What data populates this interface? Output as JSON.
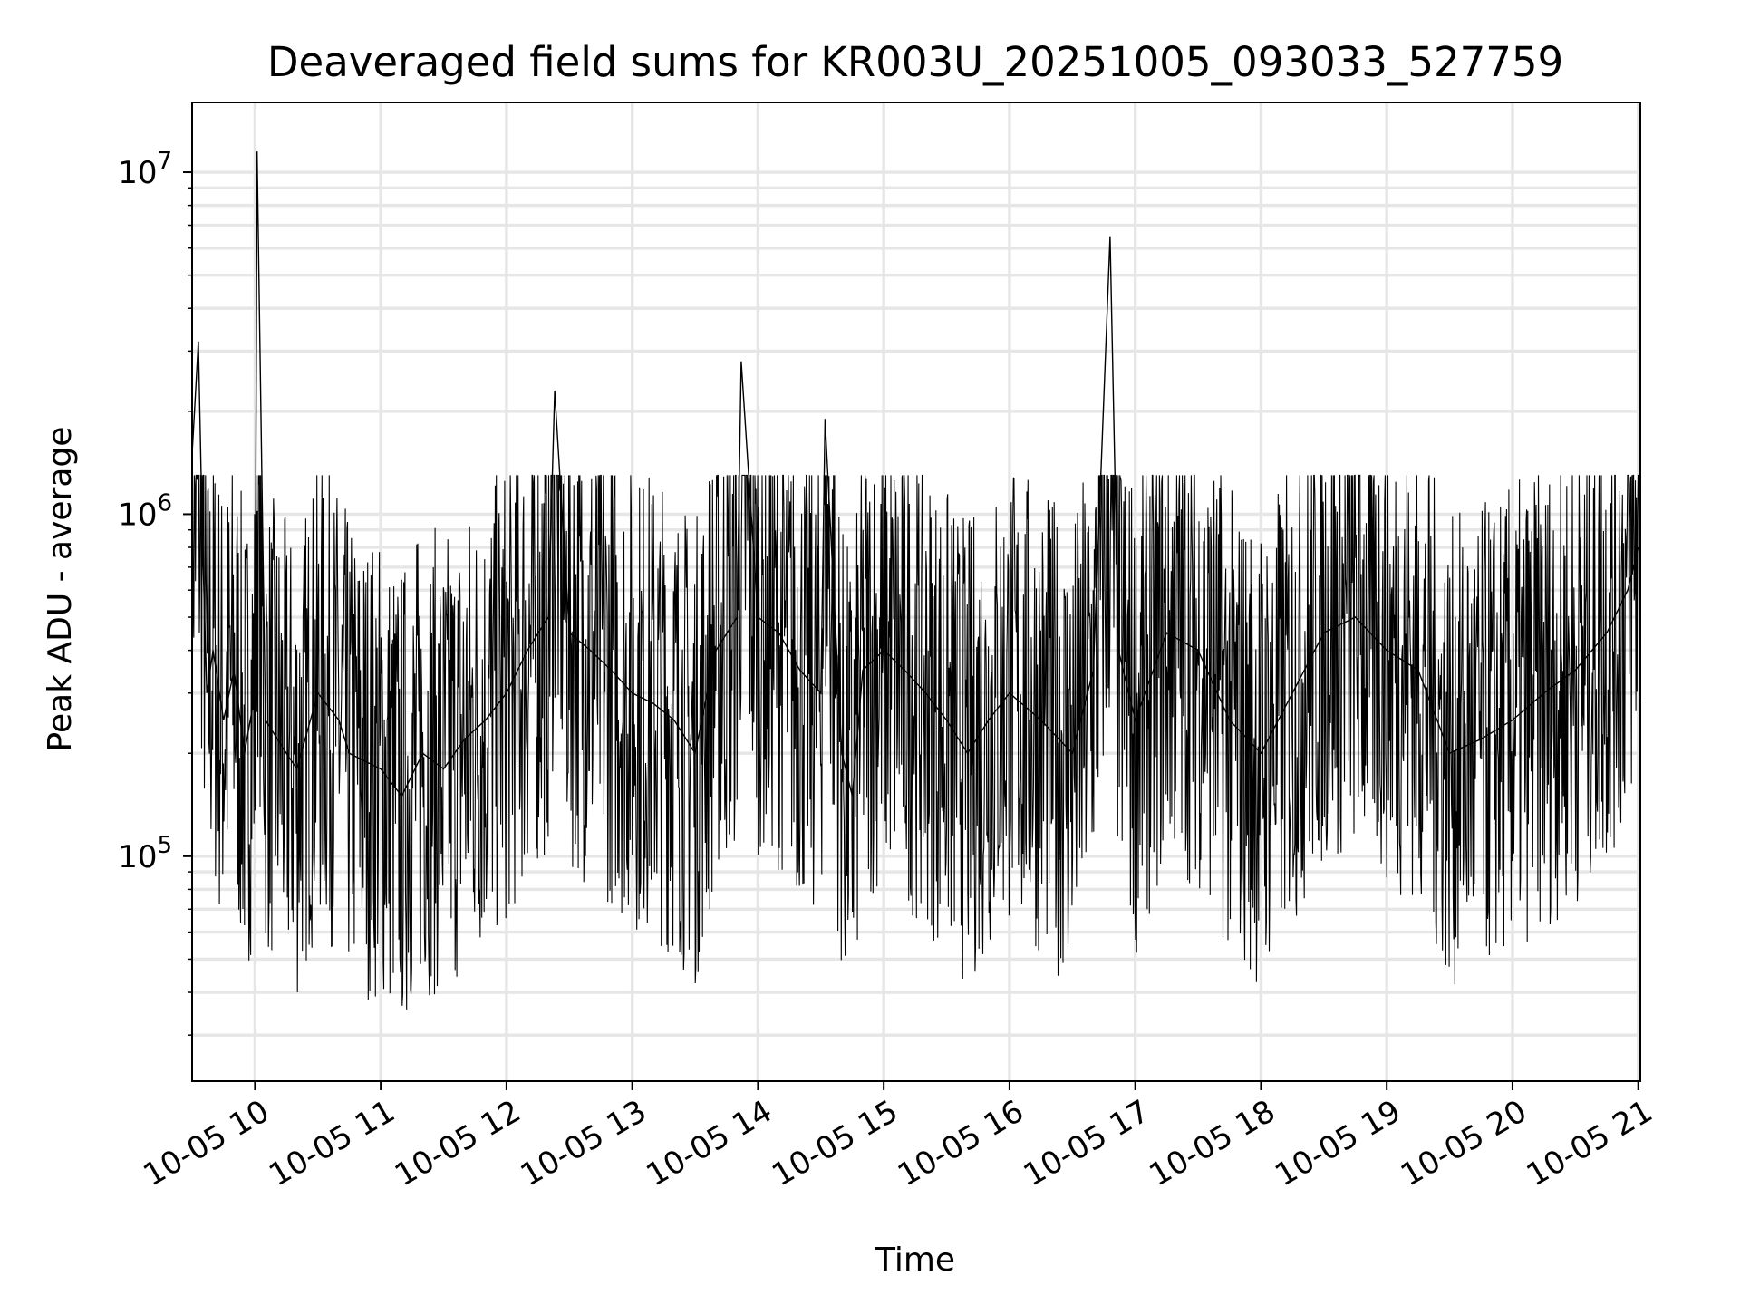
{
  "chart_data": {
    "type": "line",
    "title": "Deaveraged field sums for KR003U_20251005_093033_527759",
    "xlabel": "Time",
    "ylabel": "Peak ADU - average",
    "y_scale": "log",
    "xlim": [
      "2025-10-05 09:30",
      "2025-10-05 21:01"
    ],
    "ylim": [
      22000,
      16000000
    ],
    "grid": true,
    "line_color": "#000000",
    "grid_color": "#e6e6e6",
    "x_ticks": [
      {
        "value": "2025-10-05 10:00",
        "label": "10-05 10"
      },
      {
        "value": "2025-10-05 11:00",
        "label": "10-05 11"
      },
      {
        "value": "2025-10-05 12:00",
        "label": "10-05 12"
      },
      {
        "value": "2025-10-05 13:00",
        "label": "10-05 13"
      },
      {
        "value": "2025-10-05 14:00",
        "label": "10-05 14"
      },
      {
        "value": "2025-10-05 15:00",
        "label": "10-05 15"
      },
      {
        "value": "2025-10-05 16:00",
        "label": "10-05 16"
      },
      {
        "value": "2025-10-05 17:00",
        "label": "10-05 17"
      },
      {
        "value": "2025-10-05 18:00",
        "label": "10-05 18"
      },
      {
        "value": "2025-10-05 19:00",
        "label": "10-05 19"
      },
      {
        "value": "2025-10-05 20:00",
        "label": "10-05 20"
      },
      {
        "value": "2025-10-05 21:00",
        "label": "10-05 21"
      }
    ],
    "y_ticks": [
      {
        "value": 100000,
        "base": "10",
        "exp": "5"
      },
      {
        "value": 1000000,
        "base": "10",
        "exp": "6"
      },
      {
        "value": 10000000,
        "base": "10",
        "exp": "7"
      }
    ],
    "series": [
      {
        "x": [
          "2025-10-05 09:30",
          "2025-10-05 09:33",
          "2025-10-05 09:35",
          "2025-10-05 09:37",
          "2025-10-05 09:40",
          "2025-10-05 09:45",
          "2025-10-05 09:50",
          "2025-10-05 09:55",
          "2025-10-05 10:00",
          "2025-10-05 10:01",
          "2025-10-05 10:05",
          "2025-10-05 10:15",
          "2025-10-05 10:20",
          "2025-10-05 10:30",
          "2025-10-05 10:40",
          "2025-10-05 10:45",
          "2025-10-05 11:00",
          "2025-10-05 11:10",
          "2025-10-05 11:20",
          "2025-10-05 11:30",
          "2025-10-05 11:40",
          "2025-10-05 11:50",
          "2025-10-05 12:00",
          "2025-10-05 12:10",
          "2025-10-05 12:20",
          "2025-10-05 12:23",
          "2025-10-05 12:30",
          "2025-10-05 12:40",
          "2025-10-05 12:50",
          "2025-10-05 13:00",
          "2025-10-05 13:10",
          "2025-10-05 13:20",
          "2025-10-05 13:30",
          "2025-10-05 13:40",
          "2025-10-05 13:50",
          "2025-10-05 13:52",
          "2025-10-05 14:00",
          "2025-10-05 14:10",
          "2025-10-05 14:20",
          "2025-10-05 14:30",
          "2025-10-05 14:32",
          "2025-10-05 14:40",
          "2025-10-05 14:45",
          "2025-10-05 14:50",
          "2025-10-05 15:00",
          "2025-10-05 15:10",
          "2025-10-05 15:20",
          "2025-10-05 15:30",
          "2025-10-05 15:40",
          "2025-10-05 15:50",
          "2025-10-05 16:00",
          "2025-10-05 16:15",
          "2025-10-05 16:30",
          "2025-10-05 16:40",
          "2025-10-05 16:48",
          "2025-10-05 16:52",
          "2025-10-05 17:00",
          "2025-10-05 17:15",
          "2025-10-05 17:30",
          "2025-10-05 17:45",
          "2025-10-05 18:00",
          "2025-10-05 18:15",
          "2025-10-05 18:30",
          "2025-10-05 18:45",
          "2025-10-05 19:00",
          "2025-10-05 19:15",
          "2025-10-05 19:30",
          "2025-10-05 19:45",
          "2025-10-05 20:00",
          "2025-10-05 20:15",
          "2025-10-05 20:30",
          "2025-10-05 20:45",
          "2025-10-05 20:55",
          "2025-10-05 21:00"
        ],
        "y": [
          1500000,
          3200000,
          800000,
          300000,
          400000,
          250000,
          350000,
          200000,
          300000,
          11500000,
          250000,
          200000,
          180000,
          300000,
          250000,
          200000,
          180000,
          150000,
          200000,
          180000,
          220000,
          250000,
          300000,
          400000,
          500000,
          2300000,
          450000,
          400000,
          350000,
          300000,
          280000,
          250000,
          200000,
          400000,
          500000,
          2800000,
          500000,
          450000,
          350000,
          300000,
          1900000,
          200000,
          150000,
          350000,
          400000,
          350000,
          300000,
          250000,
          200000,
          250000,
          300000,
          250000,
          200000,
          350000,
          6500000,
          400000,
          250000,
          450000,
          400000,
          250000,
          200000,
          300000,
          450000,
          500000,
          400000,
          350000,
          200000,
          220000,
          250000,
          300000,
          350000,
          450000,
          600000,
          800000
        ]
      }
    ]
  }
}
